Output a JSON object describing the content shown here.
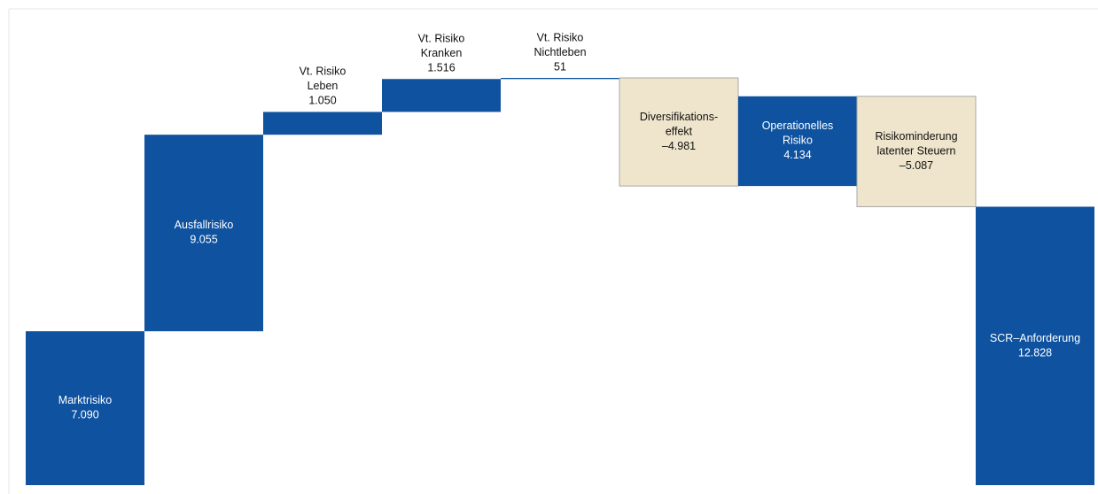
{
  "chart_data": {
    "type": "waterfall",
    "categories": [
      [
        "Marktrisiko"
      ],
      [
        "Ausfallrisiko"
      ],
      [
        "Vt. Risiko",
        "Leben"
      ],
      [
        "Vt. Risiko",
        "Kranken"
      ],
      [
        "Vt. Risiko",
        "Nichtleben"
      ],
      [
        "Diversifikations-",
        "effekt"
      ],
      [
        "Operationelles",
        "Risiko"
      ],
      [
        "Risikominderung",
        "latenter Steuern"
      ],
      [
        "SCR–Anforderung"
      ]
    ],
    "values": [
      7090,
      9055,
      1050,
      1516,
      51,
      -4981,
      4134,
      -5087,
      12828
    ],
    "value_labels": [
      "7.090",
      "9.055",
      "1.050",
      "1.516",
      "51",
      "–4.981",
      "4.134",
      "–5.087",
      "12.828"
    ],
    "measure": [
      "relative",
      "relative",
      "relative",
      "relative",
      "relative",
      "relative",
      "relative",
      "relative",
      "total"
    ],
    "colors": {
      "increase": "#0e52a0",
      "decrease": "#efe5cc",
      "total": "#0e52a0"
    }
  }
}
